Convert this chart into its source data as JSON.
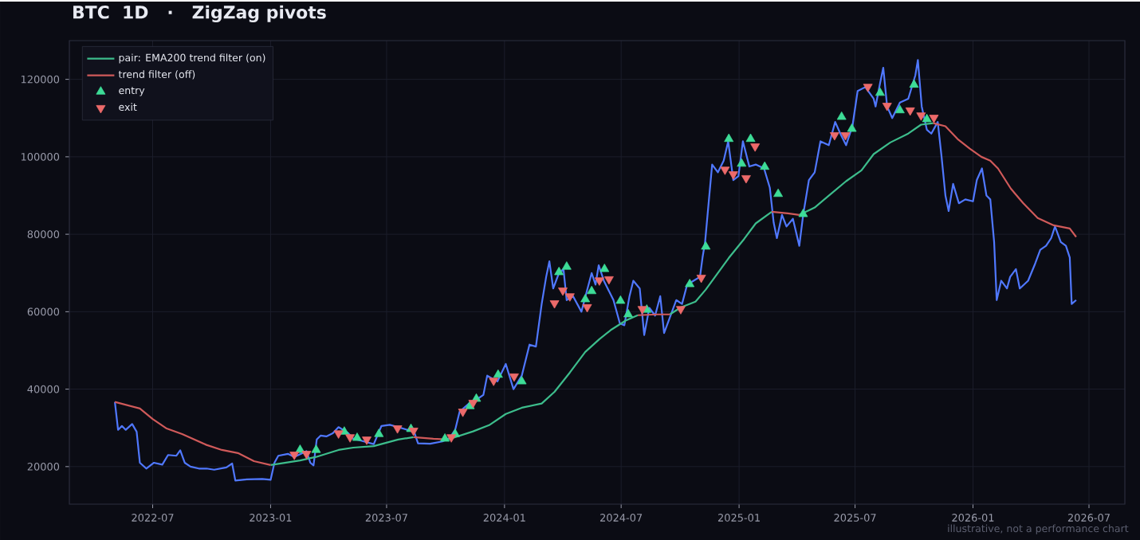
{
  "chart_data": {
    "type": "line",
    "title": "BTC  1D   ·   ZigZag pivots",
    "xlim": [
      "2022-02-21",
      "2026-08-26"
    ],
    "xticks": [
      {
        "value": "2022-07-01",
        "label": "2022-07"
      },
      {
        "value": "2023-01-01",
        "label": "2023-01"
      },
      {
        "value": "2023-07-01",
        "label": "2023-07"
      },
      {
        "value": "2024-01-01",
        "label": "2024-01"
      },
      {
        "value": "2024-07-01",
        "label": "2024-07"
      },
      {
        "value": "2025-01-01",
        "label": "2025-01"
      },
      {
        "value": "2025-07-01",
        "label": "2025-07"
      },
      {
        "value": "2026-01-01",
        "label": "2026-01"
      },
      {
        "value": "2026-07-01",
        "label": "2026-07"
      }
    ],
    "ylim": [
      10300,
      130000
    ],
    "yticks": [
      20000,
      40000,
      60000,
      80000,
      100000,
      120000
    ],
    "grid": true,
    "legend": "top left",
    "annotations": [
      "illustrative, not a performance chart"
    ],
    "series": [
      {
        "color": "#5078ff",
        "x": [
          "2022-05-03",
          "2022-05-08",
          "2022-05-14",
          "2022-05-20",
          "2022-05-30",
          "2022-06-06",
          "2022-06-11",
          "2022-06-21",
          "2022-07-03",
          "2022-07-16",
          "2022-07-25",
          "2022-08-07",
          "2022-08-13",
          "2022-08-20",
          "2022-08-29",
          "2022-09-11",
          "2022-09-23",
          "2022-10-05",
          "2022-10-24",
          "2022-11-02",
          "2022-11-07",
          "2022-11-25",
          "2022-12-19",
          "2023-01-01",
          "2023-01-07",
          "2023-01-13",
          "2023-01-28",
          "2023-02-07",
          "2023-02-26",
          "2023-03-04",
          "2023-03-09",
          "2023-03-14",
          "2023-03-20",
          "2023-03-29",
          "2023-04-08",
          "2023-04-17",
          "2023-05-01",
          "2023-05-10",
          "2023-05-22",
          "2023-06-11",
          "2023-06-23",
          "2023-07-06",
          "2023-07-19",
          "2023-08-06",
          "2023-08-13",
          "2023-08-19",
          "2023-09-07",
          "2023-09-26",
          "2023-10-07",
          "2023-10-16",
          "2023-10-23",
          "2023-11-08",
          "2023-11-20",
          "2023-11-29",
          "2023-12-05",
          "2023-12-21",
          "2024-01-03",
          "2024-01-15",
          "2024-01-28",
          "2024-02-09",
          "2024-02-19",
          "2024-02-28",
          "2024-03-06",
          "2024-03-11",
          "2024-03-17",
          "2024-03-26",
          "2024-04-02",
          "2024-04-07",
          "2024-04-17",
          "2024-04-30",
          "2024-05-08",
          "2024-05-16",
          "2024-05-22",
          "2024-05-27",
          "2024-06-04",
          "2024-06-19",
          "2024-06-29",
          "2024-07-06",
          "2024-07-14",
          "2024-07-20",
          "2024-07-30",
          "2024-08-06",
          "2024-08-14",
          "2024-08-23",
          "2024-08-31",
          "2024-09-06",
          "2024-09-15",
          "2024-09-25",
          "2024-10-04",
          "2024-10-12",
          "2024-10-22",
          "2024-11-01",
          "2024-11-05",
          "2024-11-09",
          "2024-11-15",
          "2024-11-20",
          "2024-11-29",
          "2024-12-08",
          "2024-12-15",
          "2024-12-23",
          "2024-12-31",
          "2025-01-07",
          "2025-01-17",
          "2025-01-27",
          "2025-02-09",
          "2025-02-18",
          "2025-02-24",
          "2025-03-01",
          "2025-03-09",
          "2025-03-16",
          "2025-03-26",
          "2025-04-05",
          "2025-04-11",
          "2025-04-20",
          "2025-04-29",
          "2025-05-08",
          "2025-05-21",
          "2025-05-31",
          "2025-06-08",
          "2025-06-17",
          "2025-06-27",
          "2025-07-05",
          "2025-07-17",
          "2025-07-30",
          "2025-08-02",
          "2025-08-09",
          "2025-08-14",
          "2025-08-20",
          "2025-08-28",
          "2025-09-09",
          "2025-09-22",
          "2025-10-03",
          "2025-10-07",
          "2025-10-13",
          "2025-10-21",
          "2025-10-28",
          "2025-11-07",
          "2025-11-13",
          "2025-11-19",
          "2025-11-24",
          "2025-12-01",
          "2025-12-10",
          "2025-12-20",
          "2026-01-01",
          "2026-01-07",
          "2026-01-15",
          "2026-01-22",
          "2026-01-28",
          "2026-02-03",
          "2026-02-07",
          "2026-02-14",
          "2026-02-23",
          "2026-02-28",
          "2026-03-09",
          "2026-03-15",
          "2026-03-28",
          "2026-04-07",
          "2026-04-16",
          "2026-04-25",
          "2026-05-03",
          "2026-05-09",
          "2026-05-18",
          "2026-05-26",
          "2026-06-01",
          "2026-06-04",
          "2026-06-11"
        ],
        "values": [
          36700,
          29500,
          30500,
          29500,
          31000,
          29000,
          21000,
          19500,
          21000,
          20500,
          23000,
          22800,
          24200,
          21000,
          20000,
          19500,
          19500,
          19200,
          19800,
          20800,
          16400,
          16700,
          16800,
          16600,
          21000,
          22800,
          23300,
          22500,
          24000,
          21000,
          20300,
          27000,
          28000,
          27800,
          28600,
          30200,
          28800,
          27200,
          26700,
          25800,
          30500,
          30800,
          30200,
          29300,
          29000,
          26000,
          25900,
          26500,
          27300,
          29500,
          34200,
          36500,
          37500,
          38500,
          43500,
          42000,
          46500,
          40000,
          43500,
          51500,
          51000,
          62000,
          69000,
          73000,
          66000,
          70000,
          71000,
          63000,
          64000,
          60000,
          65000,
          70000,
          67000,
          72000,
          68000,
          63000,
          57000,
          56500,
          64000,
          68000,
          66000,
          54000,
          61000,
          59000,
          64000,
          54500,
          58500,
          63000,
          62000,
          67000,
          68000,
          69000,
          74000,
          78000,
          89000,
          98000,
          96000,
          99000,
          104000,
          94000,
          95000,
          104000,
          97500,
          98000,
          97000,
          92000,
          83000,
          79000,
          85000,
          82000,
          84000,
          77000,
          85000,
          94000,
          96000,
          104000,
          103000,
          109000,
          106000,
          103000,
          108000,
          117000,
          118000,
          115000,
          113000,
          119000,
          123000,
          113000,
          110000,
          114000,
          115000,
          121000,
          125000,
          113000,
          107000,
          106000,
          109000,
          100000,
          90000,
          86000,
          93000,
          88000,
          89000,
          88500,
          94000,
          97000,
          90000,
          89000,
          78000,
          63000,
          68000,
          66000,
          69000,
          71000,
          66000,
          68000,
          72000,
          76000,
          77000,
          79000,
          82000,
          78000,
          77000,
          74000,
          62000,
          63000
        ]
      },
      {
        "name": "pair: EMA200 trend filter (on)",
        "color": "#3dbd8c",
        "x": [
          "2023-01-01",
          "2023-02-16",
          "2023-03-13",
          "2023-04-17",
          "2023-05-10",
          "2023-06-11",
          "2023-07-19",
          "2023-08-12"
        ],
        "values": [
          20400,
          21600,
          22500,
          24300,
          24900,
          25300,
          27000,
          27600
        ]
      },
      {
        "name": "trend filter (off)",
        "color": "#d05a5a",
        "x": [
          "2022-05-03",
          "2022-06-11",
          "2022-07-01",
          "2022-07-22",
          "2022-08-16",
          "2022-09-23",
          "2022-10-17",
          "2022-11-11",
          "2022-12-06",
          "2023-01-01"
        ],
        "values": [
          36700,
          35000,
          32300,
          29900,
          28400,
          25600,
          24300,
          23500,
          21400,
          20400
        ]
      },
      {
        "color": "#3dbd8c",
        "x": [
          "2023-10-05",
          "2023-11-13",
          "2023-12-08",
          "2024-01-03",
          "2024-01-28",
          "2024-02-28",
          "2024-03-19",
          "2024-04-12",
          "2024-05-06",
          "2024-05-28",
          "2024-06-16",
          "2024-07-08",
          "2024-07-27"
        ],
        "values": [
          27000,
          29100,
          30700,
          33600,
          35200,
          36300,
          39300,
          44300,
          49600,
          52900,
          55400,
          57700,
          59100
        ]
      },
      {
        "color": "#3dbd8c",
        "x": [
          "2024-09-15",
          "2024-10-02",
          "2024-10-25",
          "2024-11-10",
          "2024-12-16",
          "2025-01-09",
          "2025-01-27",
          "2025-02-21"
        ],
        "values": [
          59300,
          61100,
          62600,
          65700,
          73900,
          78800,
          82800,
          85800
        ]
      },
      {
        "color": "#3dbd8c",
        "x": [
          "2025-04-05",
          "2025-04-29",
          "2025-05-24",
          "2025-06-17",
          "2025-07-11",
          "2025-07-30",
          "2025-08-25",
          "2025-09-22",
          "2025-10-12",
          "2025-10-31"
        ],
        "values": [
          85000,
          86900,
          90400,
          93700,
          96500,
          100700,
          103700,
          106000,
          108300,
          108700
        ]
      },
      {
        "color": "#d05a5a",
        "x": [
          "2023-08-12",
          "2023-09-12",
          "2023-10-05"
        ],
        "values": [
          27600,
          27200,
          27000
        ]
      },
      {
        "color": "#d05a5a",
        "x": [
          "2024-07-27",
          "2024-08-27",
          "2024-09-15"
        ],
        "values": [
          59100,
          59300,
          59300
        ]
      },
      {
        "color": "#d05a5a",
        "x": [
          "2025-02-21",
          "2025-03-18",
          "2025-04-05"
        ],
        "values": [
          85800,
          85400,
          85000
        ]
      },
      {
        "color": "#d05a5a",
        "x": [
          "2025-10-31",
          "2025-11-19",
          "2025-12-08",
          "2025-12-27",
          "2026-01-14",
          "2026-01-28",
          "2026-02-09",
          "2026-03-01",
          "2026-03-20",
          "2026-04-12",
          "2026-05-07",
          "2026-06-01",
          "2026-06-11"
        ],
        "values": [
          108700,
          107900,
          104600,
          102100,
          100000,
          99000,
          97000,
          91800,
          88100,
          84200,
          82300,
          81500,
          79300
        ]
      },
      {
        "type": "scatter",
        "name": "entry",
        "color": "#3ddc97",
        "marker": "triangle",
        "x": [
          "2023-02-16",
          "2023-03-13",
          "2023-04-26",
          "2023-05-16",
          "2023-06-19",
          "2023-08-08",
          "2023-09-30",
          "2023-10-16",
          "2023-11-08",
          "2023-11-18",
          "2023-12-22",
          "2024-01-28",
          "2024-03-26",
          "2024-04-07",
          "2024-05-06",
          "2024-05-16",
          "2024-06-05",
          "2024-06-30",
          "2024-07-12",
          "2024-08-10",
          "2024-10-16",
          "2024-11-10",
          "2024-12-16",
          "2025-01-05",
          "2025-01-19",
          "2025-02-10",
          "2025-03-03",
          "2025-04-11",
          "2025-06-10",
          "2025-06-26",
          "2025-08-09",
          "2025-09-09",
          "2025-10-01",
          "2025-10-21"
        ],
        "values": [
          24300,
          24300,
          29000,
          27400,
          28400,
          29700,
          27200,
          28400,
          35600,
          37500,
          43700,
          42000,
          70200,
          71600,
          63200,
          65300,
          71000,
          62800,
          59300,
          60500,
          67100,
          76800,
          104600,
          98200,
          104600,
          97400,
          90400,
          85200,
          110300,
          107200,
          116500,
          112000,
          118600,
          109700
        ]
      },
      {
        "type": "scatter",
        "name": "exit",
        "color": "#ec6a6a",
        "marker": "triangle down",
        "x": [
          "2023-02-07",
          "2023-02-26",
          "2023-04-17",
          "2023-05-05",
          "2023-05-31",
          "2023-07-18",
          "2023-08-12",
          "2023-10-10",
          "2023-10-28",
          "2023-11-13",
          "2023-12-15",
          "2024-01-16",
          "2024-03-19",
          "2024-04-01",
          "2024-04-12",
          "2024-05-09",
          "2024-05-28",
          "2024-06-12",
          "2024-08-03",
          "2024-10-02",
          "2024-11-03",
          "2024-12-10",
          "2024-12-23",
          "2025-01-12",
          "2025-01-26",
          "2025-05-30",
          "2025-06-16",
          "2025-07-21",
          "2025-08-20",
          "2025-09-25",
          "2025-10-12",
          "2025-11-01"
        ],
        "values": [
          23100,
          23300,
          28600,
          27600,
          27000,
          29900,
          29300,
          27600,
          34200,
          36500,
          42200,
          43300,
          62200,
          65500,
          64000,
          61200,
          68100,
          68400,
          60700,
          60700,
          68800,
          96700,
          95500,
          94500,
          102700,
          105600,
          105600,
          118100,
          113200,
          112000,
          110700,
          110100
        ]
      }
    ]
  }
}
